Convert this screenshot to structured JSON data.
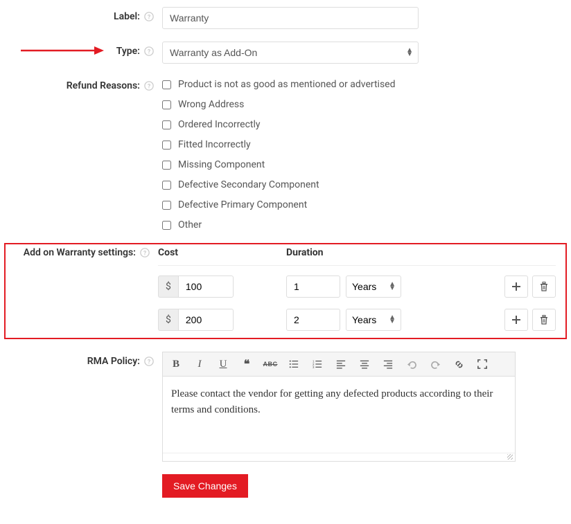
{
  "labels": {
    "label": "Label:",
    "type": "Type:",
    "refund_reasons": "Refund Reasons:",
    "addon_settings": "Add on Warranty settings:",
    "rma_policy": "RMA Policy:"
  },
  "label_value": "Warranty",
  "type_value": "Warranty as Add-On",
  "refund_reasons": [
    "Product is not as good as mentioned or advertised",
    "Wrong Address",
    "Ordered Incorrectly",
    "Fitted Incorrectly",
    "Missing Component",
    "Defective Secondary Component",
    "Defective Primary Component",
    "Other"
  ],
  "warranty_table": {
    "headers": {
      "cost": "Cost",
      "duration": "Duration"
    },
    "currency": "$",
    "rows": [
      {
        "cost": "100",
        "duration": "1",
        "unit": "Years"
      },
      {
        "cost": "200",
        "duration": "2",
        "unit": "Years"
      }
    ]
  },
  "rma_content": "Please contact the vendor for getting any defected products according to their terms and conditions.",
  "save_label": "Save Changes",
  "colors": {
    "highlight": "#e31b23",
    "arrow": "#e31b23"
  }
}
